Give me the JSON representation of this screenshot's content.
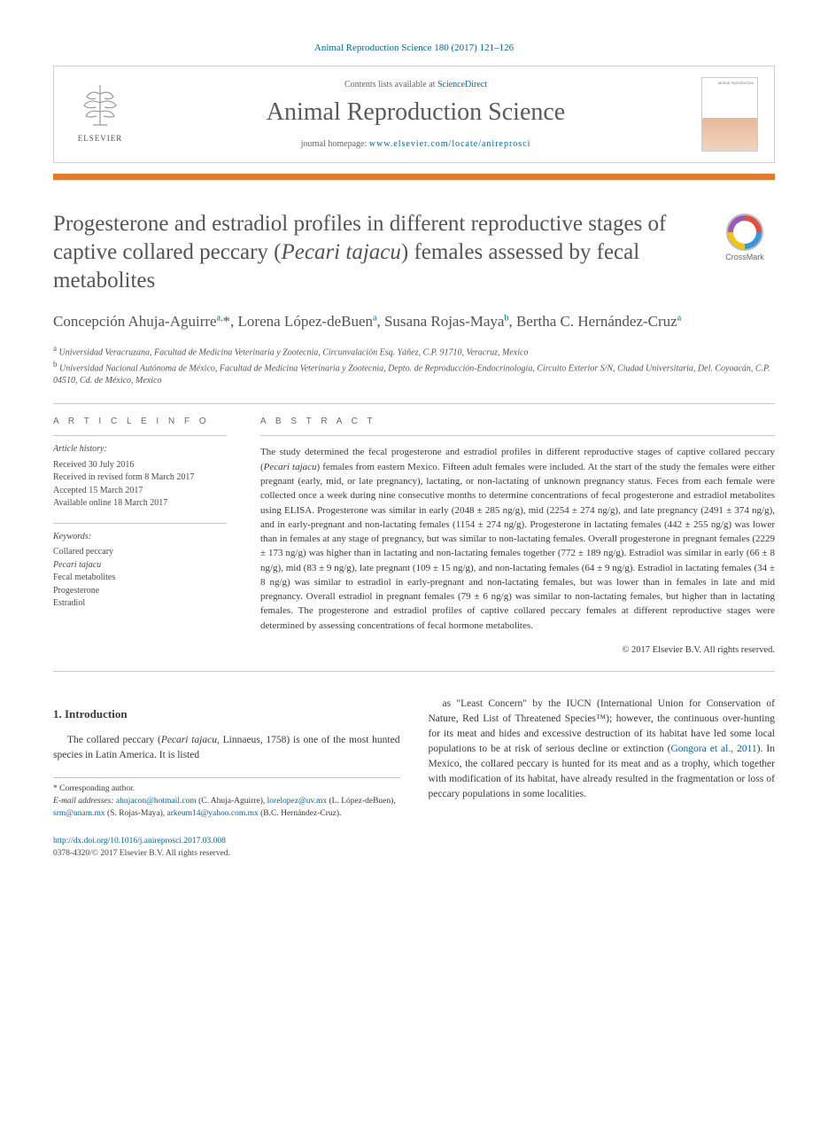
{
  "citation": "Animal Reproduction Science 180 (2017) 121–126",
  "journal_box": {
    "contents_prefix": "Contents lists available at ",
    "contents_link": "ScienceDirect",
    "journal_name": "Animal Reproduction Science",
    "homepage_prefix": "journal homepage: ",
    "homepage_url": "www.elsevier.com/locate/anireprosci",
    "publisher_label": "ELSEVIER"
  },
  "colors": {
    "accent_orange": "#e7792b",
    "link_blue": "#0066b3",
    "text_gray": "#3a3a3a"
  },
  "title_html": "Progesterone and estradiol profiles in different reproductive stages of captive collared peccary (<em>Pecari tajacu</em>) females assessed by fecal metabolites",
  "crossmark_label": "CrossMark",
  "authors_html": "Concepción Ahuja-Aguirre<sup>a,</sup>*, Lorena López-deBuen<sup>a</sup>, Susana Rojas-Maya<sup>b</sup>, Bertha C. Hernández-Cruz<sup>a</sup>",
  "affiliations": {
    "a": "Universidad Veracruzana, Facultad de Medicina Veterinaria y Zootecnia, Circunvalación Esq. Yáñez, C.P. 91710, Veracruz, Mexico",
    "b": "Universidad Nacional Autónoma de México, Facultad de Medicina Veterinaria y Zootecnia, Depto. de Reproducción-Endocrinología, Circuito Exterior S/N, Ciudad Universitaria, Del. Coyoacán, C.P. 04510, Cd. de México, Mexico"
  },
  "article_info": {
    "heading": "A R T I C L E  I N F O",
    "history_title": "Article history:",
    "history": [
      "Received 30 July 2016",
      "Received in revised form 8 March 2017",
      "Accepted 15 March 2017",
      "Available online 18 March 2017"
    ],
    "keywords_title": "Keywords:",
    "keywords": [
      "Collared peccary",
      "Pecari tajacu",
      "Fecal metabolites",
      "Progesterone",
      "Estradiol"
    ]
  },
  "abstract": {
    "heading": "A B S T R A C T",
    "text_html": "The study determined the fecal progesterone and estradiol profiles in different reproductive stages of captive collared peccary (<em>Pecari tajacu</em>) females from eastern Mexico. Fifteen adult females were included. At the start of the study the females were either pregnant (early, mid, or late pregnancy), lactating, or non-lactating of unknown pregnancy status. Feces from each female were collected once a week during nine consecutive months to determine concentrations of fecal progesterone and estradiol metabolites using ELISA. Progesterone was similar in early (2048 ± 285 ng/g), mid (2254 ± 274 ng/g), and late pregnancy (2491 ± 374 ng/g), and in early-pregnant and non-lactating females (1154 ± 274 ng/g). Progesterone in lactating females (442 ± 255 ng/g) was lower than in females at any stage of pregnancy, but was similar to non-lactating females. Overall progesterone in pregnant females (2229 ± 173 ng/g) was higher than in lactating and non-lactating females together (772 ± 189 ng/g). Estradiol was similar in early (66 ± 8 ng/g), mid (83 ± 9 ng/g), late pregnant (109 ± 15 ng/g), and non-lactating females (64 ± 9 ng/g). Estradiol in lactating females (34 ± 8 ng/g) was similar to estradiol in early-pregnant and non-lactating females, but was lower than in females in late and mid pregnancy. Overall estradiol in pregnant females (79 ± 6 ng/g) was similar to non-lactating females, but higher than in lactating females. The progesterone and estradiol profiles of captive collared peccary females at different reproductive stages were determined by assessing concentrations of fecal hormone metabolites.",
    "copyright": "© 2017 Elsevier B.V. All rights reserved."
  },
  "section1": {
    "heading": "1.  Introduction",
    "col1_html": "The collared peccary (<em>Pecari tajacu</em>, Linnaeus, 1758) is one of the most hunted species in Latin America. It is listed",
    "col2_html": "as \"Least Concern\" by the IUCN (International Union for Conservation of Nature, Red List of Threatened Species™); however, the continuous over-hunting for its meat and hides and excessive destruction of its habitat have led some local populations to be at risk of serious decline or extinction (<a href=\"#\">Gongora et al., 2011</a>). In Mexico, the collared peccary is hunted for its meat and as a trophy, which together with modification of its habitat, have already resulted in the fragmentation or loss of peccary populations in some localities."
  },
  "footnotes": {
    "corresponding": "* Corresponding author.",
    "email_label": "E-mail addresses:",
    "emails": [
      {
        "addr": "ahujacon@hotmail.com",
        "who": "(C. Ahuja-Aguirre)"
      },
      {
        "addr": "lorelopez@uv.mx",
        "who": "(L. López-deBuen)"
      },
      {
        "addr": "srm@unam.mx",
        "who": "(S. Rojas-Maya)"
      },
      {
        "addr": "arkeum14@yahoo.com.mx",
        "who": "(B.C. Hernández-Cruz)."
      }
    ]
  },
  "footer": {
    "doi": "http://dx.doi.org/10.1016/j.anireprosci.2017.03.008",
    "issn_line": "0378-4320/© 2017 Elsevier B.V. All rights reserved."
  }
}
